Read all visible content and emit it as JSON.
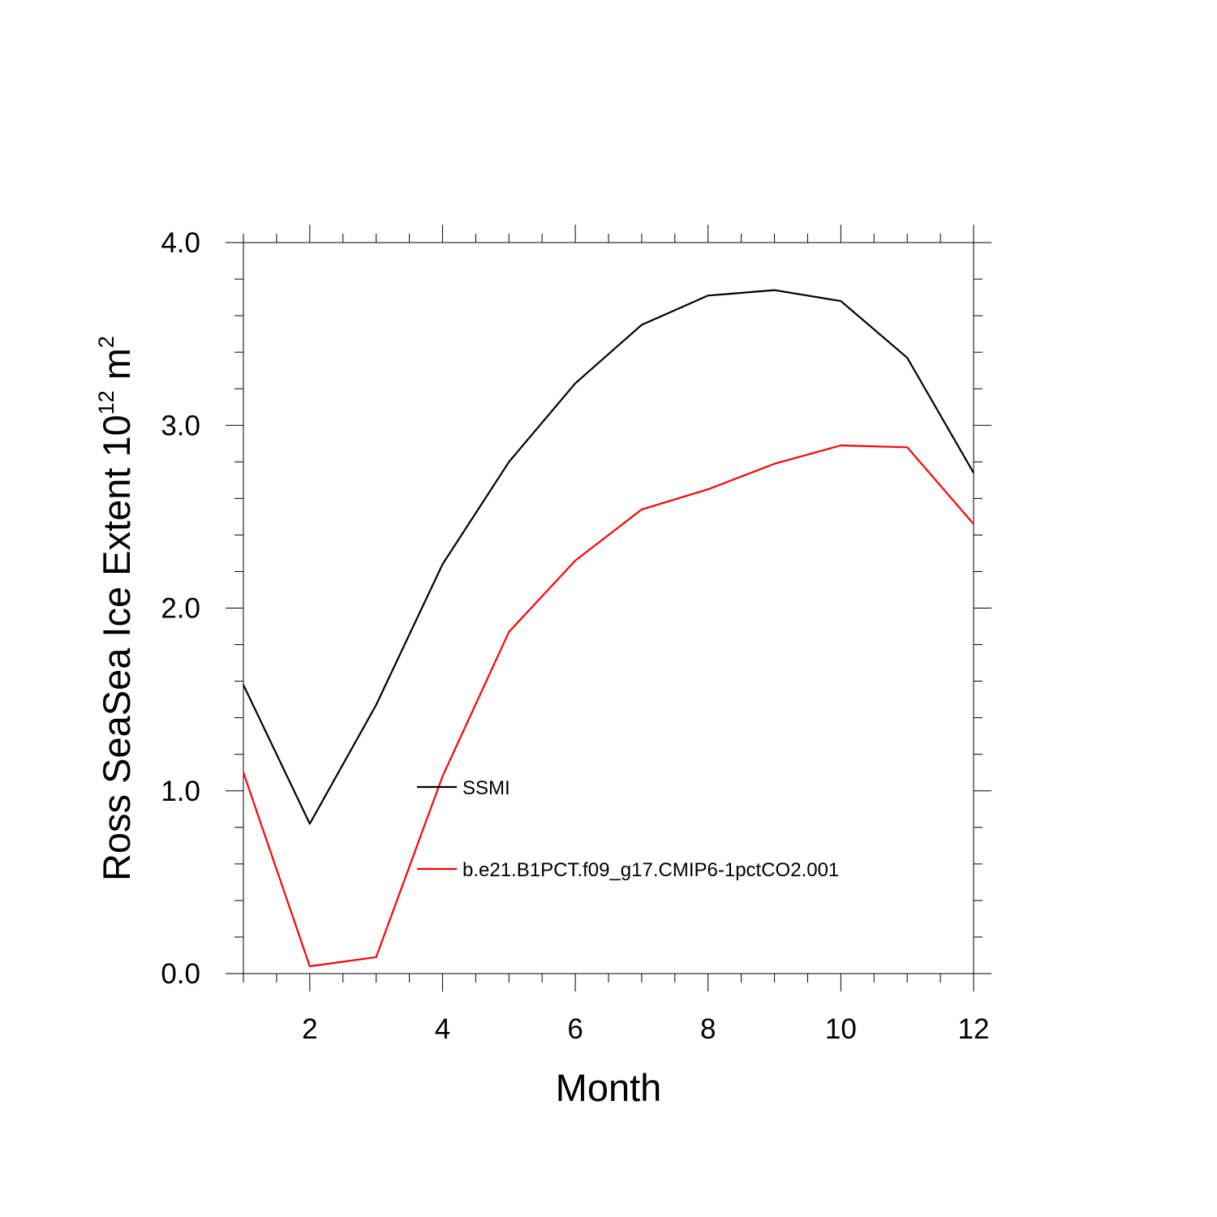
{
  "chart_data": {
    "type": "line",
    "title": "",
    "xlabel": "Month",
    "ylabel_main": "Ross SeaSea Ice Extent 10",
    "ylabel_exp": "12",
    "ylabel_unit": " m",
    "ylabel_unit_exp": "2",
    "xlim": [
      1,
      12
    ],
    "ylim": [
      0,
      4.0
    ],
    "x_ticks": [
      2,
      4,
      6,
      8,
      10,
      12
    ],
    "x_tick_labels": [
      "2",
      "4",
      "6",
      "8",
      "10",
      "12"
    ],
    "y_ticks": [
      0,
      1,
      2,
      3,
      4
    ],
    "y_tick_labels": [
      "0.0",
      "1.0",
      "2.0",
      "3.0",
      "4.0"
    ],
    "grid": false,
    "legend_position": "center",
    "x": [
      1,
      2,
      3,
      4,
      5,
      6,
      7,
      8,
      9,
      10,
      11,
      12
    ],
    "series": [
      {
        "name": "SSMI",
        "color": "#000000",
        "values": [
          1.58,
          0.82,
          1.47,
          2.24,
          2.8,
          3.23,
          3.55,
          3.71,
          3.74,
          3.68,
          3.37,
          2.74
        ]
      },
      {
        "name": "b.e21.B1PCT.f09_g17.CMIP6-1pctCO2.001",
        "color": "#ff0000",
        "values": [
          1.1,
          0.04,
          0.09,
          1.08,
          1.87,
          2.26,
          2.54,
          2.65,
          2.79,
          2.89,
          2.88,
          2.46
        ]
      }
    ]
  }
}
